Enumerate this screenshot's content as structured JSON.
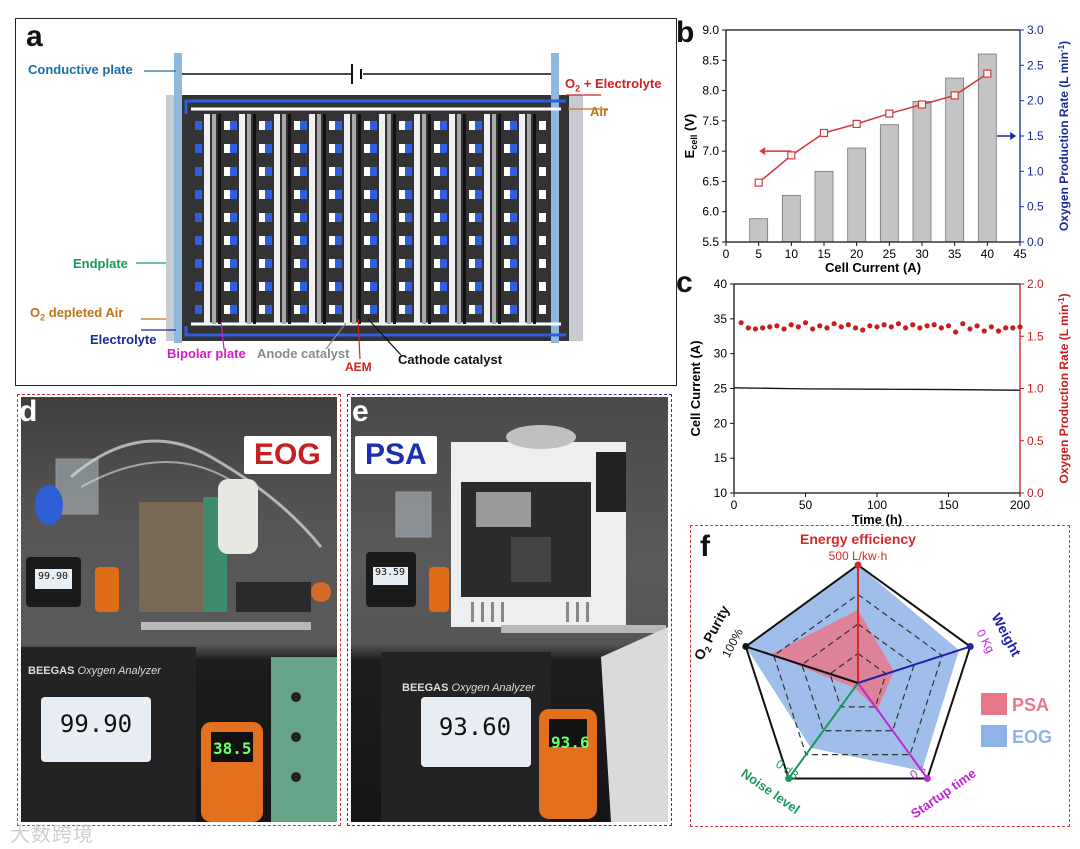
{
  "panels": {
    "a": "a",
    "b": "b",
    "c": "c",
    "d": "d",
    "e": "e",
    "f": "f"
  },
  "panel_a": {
    "conductive_plate": "Conductive plate",
    "o2_electrolyte": "O",
    "o2_electrolyte_sub": "2",
    "o2_electrolyte_rest": " + Electrolyte",
    "air": "Air",
    "endplate": "Endplate",
    "o2_depleted_pre": "O",
    "o2_depleted_sub": "2",
    "o2_depleted_rest": " depleted Air",
    "electrolyte": "Electrolyte",
    "bipolar_plate": "Bipolar plate",
    "anode_catalyst": "Anode catalyst",
    "aem": "AEM",
    "cathode_catalyst": "Cathode catalyst"
  },
  "panel_d": {
    "label": "EOG",
    "meter_top": "99.90",
    "meter_big": "99.90",
    "brand": "BEEGAS",
    "brand_sub": "Oxygen Analyzer",
    "sound": "38.5"
  },
  "panel_e": {
    "label": "PSA",
    "meter_top": "93.59",
    "meter_big": "93.60",
    "brand": "BEEGAS",
    "brand_sub": "Oxygen Analyzer",
    "sound": "93.6"
  },
  "watermark": "大数跨境",
  "chart_data": [
    {
      "panel": "b",
      "type": "bar+line",
      "x": [
        5,
        10,
        15,
        20,
        25,
        30,
        35,
        40
      ],
      "series": [
        {
          "name": "E_cell",
          "axis": "left",
          "type": "line",
          "values": [
            6.48,
            6.93,
            7.3,
            7.45,
            7.62,
            7.77,
            7.92,
            8.28
          ]
        },
        {
          "name": "Oxygen Production Rate",
          "axis": "right",
          "type": "bar",
          "values": [
            0.33,
            0.66,
            1.0,
            1.33,
            1.66,
            1.99,
            2.32,
            2.66
          ]
        }
      ],
      "xlabel": "Cell Current (A)",
      "ylabel_left_main": "E",
      "ylabel_left_sub": "cell",
      "ylabel_left_unit": " (V)",
      "ylabel_right": "Oxygen Production Rate (L min",
      "ylabel_right_sup": "-1",
      "ylabel_right_close": ")",
      "xlim": [
        0,
        45
      ],
      "ylim_left": [
        5.5,
        9.0
      ],
      "ylim_right": [
        0,
        3.0
      ],
      "xticks": [
        "0",
        "5",
        "10",
        "15",
        "20",
        "25",
        "30",
        "35",
        "40",
        "45"
      ],
      "yticks_left": [
        "5.5",
        "6.0",
        "6.5",
        "7.0",
        "7.5",
        "8.0",
        "8.5",
        "9.0"
      ],
      "yticks_right": [
        "0.0",
        "0.5",
        "1.0",
        "1.5",
        "2.0",
        "2.5",
        "3.0"
      ]
    },
    {
      "panel": "c",
      "type": "scatter+line",
      "x_scatter": [
        5,
        10,
        15,
        20,
        25,
        30,
        35,
        40,
        45,
        50,
        55,
        60,
        65,
        70,
        75,
        80,
        85,
        90,
        95,
        100,
        105,
        110,
        115,
        120,
        125,
        130,
        135,
        140,
        145,
        150,
        155,
        160,
        165,
        170,
        175,
        180,
        185,
        190,
        195,
        200
      ],
      "scatter_values": [
        1.63,
        1.58,
        1.57,
        1.58,
        1.59,
        1.6,
        1.57,
        1.61,
        1.59,
        1.63,
        1.57,
        1.6,
        1.58,
        1.62,
        1.59,
        1.61,
        1.58,
        1.56,
        1.6,
        1.59,
        1.61,
        1.59,
        1.62,
        1.58,
        1.61,
        1.58,
        1.6,
        1.61,
        1.58,
        1.6,
        1.54,
        1.62,
        1.57,
        1.6,
        1.55,
        1.59,
        1.55,
        1.58,
        1.58,
        1.59
      ],
      "line_x": [
        0,
        50,
        100,
        150,
        200
      ],
      "line_values": [
        25.1,
        24.95,
        24.9,
        24.85,
        24.75
      ],
      "xlabel": "Time (h)",
      "ylabel_left": "Cell Current (A)",
      "ylabel_right": "Oxygen Production Rate (L min",
      "ylabel_right_sup": "-1",
      "ylabel_right_close": ")",
      "xlim": [
        0,
        200
      ],
      "ylim_left": [
        10,
        40
      ],
      "ylim_right": [
        0,
        2.0
      ],
      "xticks": [
        "0",
        "50",
        "100",
        "150",
        "200"
      ],
      "yticks_left": [
        "10",
        "15",
        "20",
        "25",
        "30",
        "35",
        "40"
      ],
      "yticks_right": [
        "0.0",
        "0.5",
        "1.0",
        "1.5",
        "2.0"
      ]
    },
    {
      "panel": "f",
      "type": "radar",
      "axes": [
        {
          "name": "Energy efficiency",
          "max_label": "500 L/kw·h",
          "color": "#d62a2a"
        },
        {
          "name": "Weight",
          "max_label": "0 Kg",
          "color": "#2222aa"
        },
        {
          "name": "Startup time",
          "max_label": "0 s",
          "color": "#c026d3"
        },
        {
          "name": "Noise level",
          "max_label": "0 dB",
          "color": "#1a9a5a"
        },
        {
          "name_pre": "O",
          "name_sub": "2",
          "name_rest": " Purity",
          "max_label": "100%",
          "color": "#111111"
        }
      ],
      "series": [
        {
          "name": "PSA",
          "color": "#e8788a",
          "values": [
            0.62,
            0.32,
            0.28,
            0.05,
            0.78
          ]
        },
        {
          "name": "EOG",
          "color": "#8fb3e6",
          "values": [
            1.0,
            0.9,
            0.92,
            0.68,
            1.0
          ]
        }
      ]
    }
  ]
}
